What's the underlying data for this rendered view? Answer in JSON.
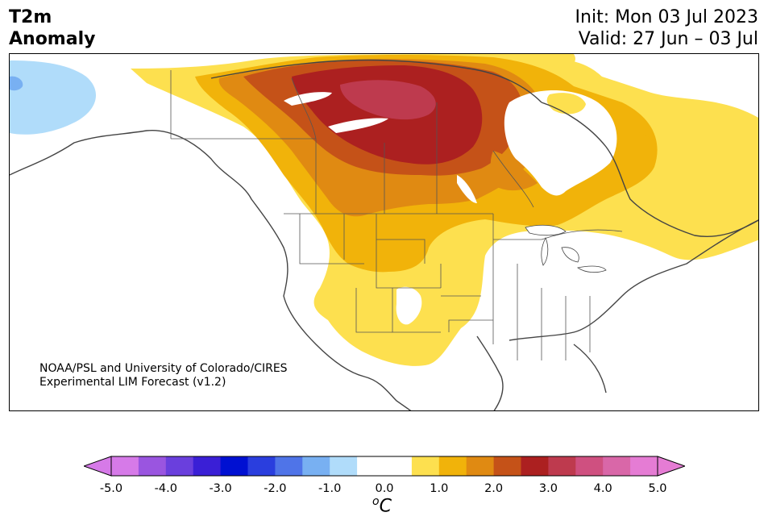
{
  "header": {
    "title_line1": "T2m",
    "title_line2": "Anomaly",
    "init": "Init: Mon 03 Jul 2023",
    "valid": "Valid: 27 Jun – 03 Jul"
  },
  "credit": {
    "line1": "NOAA/PSL and University of Colorado/CIRES",
    "line2": "Experimental LIM Forecast (v1.2)"
  },
  "colorbar": {
    "unit_sup": "o",
    "unit": "C",
    "ticks": [
      "-5.0",
      "-4.0",
      "-3.0",
      "-2.0",
      "-1.0",
      "0.0",
      "1.0",
      "2.0",
      "3.0",
      "4.0",
      "5.0"
    ],
    "colors": [
      "#d67ae8",
      "#9a55e0",
      "#6a3fdd",
      "#3a1fd6",
      "#0010d2",
      "#2a3ede",
      "#4f74e8",
      "#78b0f2",
      "#b0dcfa",
      "#ffffff",
      "#ffffff",
      "#fde04f",
      "#f1b30a",
      "#e08a12",
      "#c55218",
      "#ac2020",
      "#be3a4e",
      "#cf5080",
      "#d967a8",
      "#e57cd4"
    ],
    "extend_low_color": "#d67ae8",
    "extend_high_color": "#e57cd4"
  },
  "map": {
    "region": "North America",
    "anomaly_colors": {
      "plus_0_5_to_1": "#fde04f",
      "plus_1_to_1_5": "#f1b30a",
      "plus_1_5_to_2": "#e08a12",
      "plus_2_to_2_5": "#c55218",
      "plus_2_5_to_3": "#ac2020",
      "plus_3_to_3_5": "#be3a4e",
      "minus_0_5_to_1": "#b0dcfa",
      "minus_1_to_1_5": "#78b0f2"
    }
  }
}
